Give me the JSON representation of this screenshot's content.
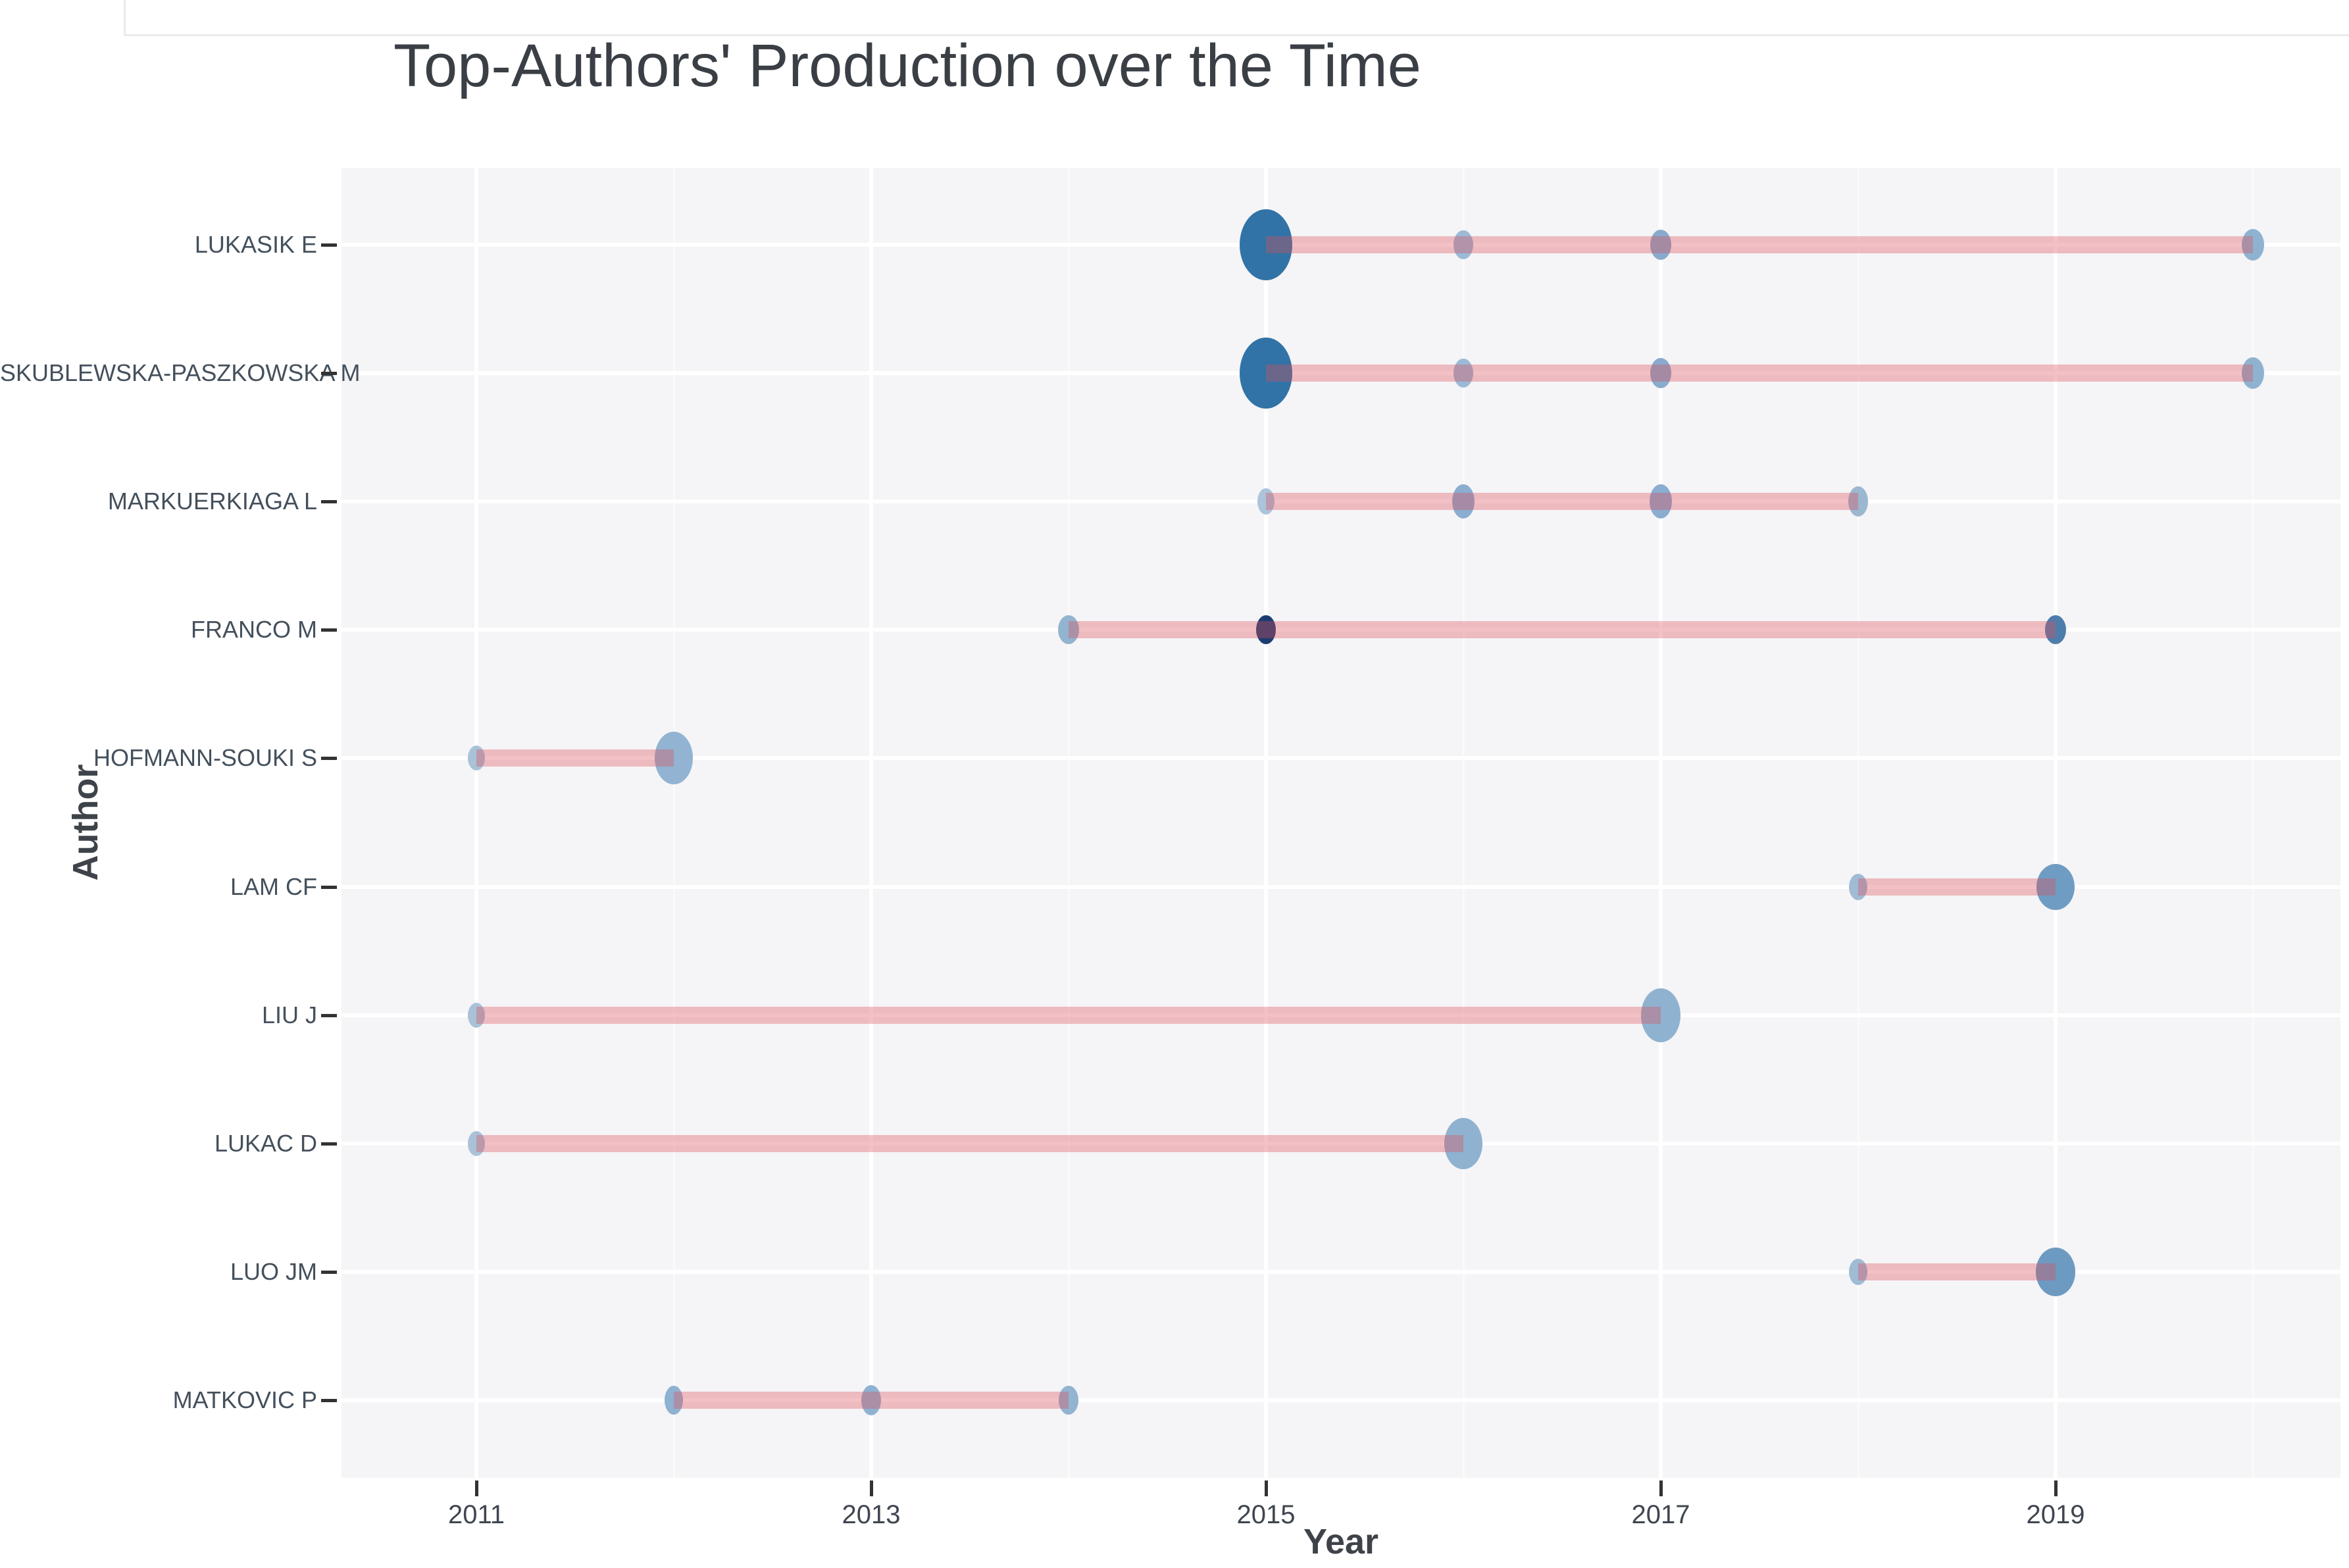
{
  "title": "Top-Authors' Production over the Time",
  "chart_data": {
    "type": "scatter",
    "title": "Top-Authors' Production over the Time",
    "xlabel": "Year",
    "ylabel": "Author",
    "x_ticks": [
      2011,
      2013,
      2015,
      2017,
      2019
    ],
    "x_minor_ticks": [
      2012,
      2014,
      2016,
      2018,
      2020
    ],
    "x_range": [
      2010.3,
      2020.45
    ],
    "grid": "white-on-gray-panel",
    "legend": "none",
    "marker_note": "dot size = articles count, dot darkness = citations intensity, pink line = activity span",
    "authors": [
      {
        "name": "LUKASIK E",
        "line_span": [
          2015,
          2020
        ],
        "points": [
          {
            "year": 2015,
            "w": 80,
            "h": 108,
            "color": "#3173a6"
          },
          {
            "year": 2016,
            "w": 30,
            "h": 44,
            "color": "#9cbad6"
          },
          {
            "year": 2017,
            "w": 32,
            "h": 46,
            "color": "#88abcd"
          },
          {
            "year": 2020,
            "w": 34,
            "h": 48,
            "color": "#8fb2d1"
          }
        ]
      },
      {
        "name": "SKUBLEWSKA-PASZKOWSKA M",
        "line_span": [
          2015,
          2020
        ],
        "points": [
          {
            "year": 2015,
            "w": 80,
            "h": 108,
            "color": "#3173a6"
          },
          {
            "year": 2016,
            "w": 30,
            "h": 44,
            "color": "#9cbad6"
          },
          {
            "year": 2017,
            "w": 32,
            "h": 46,
            "color": "#88abcd"
          },
          {
            "year": 2020,
            "w": 34,
            "h": 48,
            "color": "#8fb2d1"
          }
        ]
      },
      {
        "name": "MARKUERKIAGA L",
        "line_span": [
          2015,
          2018
        ],
        "points": [
          {
            "year": 2015,
            "w": 26,
            "h": 40,
            "color": "#abc4da"
          },
          {
            "year": 2016,
            "w": 34,
            "h": 52,
            "color": "#8badd0"
          },
          {
            "year": 2017,
            "w": 34,
            "h": 52,
            "color": "#8badd0"
          },
          {
            "year": 2018,
            "w": 30,
            "h": 46,
            "color": "#9cb7d0"
          }
        ]
      },
      {
        "name": "FRANCO M",
        "line_span": [
          2014,
          2019
        ],
        "points": [
          {
            "year": 2014,
            "w": 32,
            "h": 44,
            "color": "#92b4d0"
          },
          {
            "year": 2015,
            "w": 30,
            "h": 44,
            "color": "#1c3c70"
          },
          {
            "year": 2019,
            "w": 32,
            "h": 44,
            "color": "#4d7dab"
          }
        ]
      },
      {
        "name": "HOFMANN-SOUKI S",
        "line_span": [
          2011,
          2012
        ],
        "points": [
          {
            "year": 2011,
            "w": 26,
            "h": 38,
            "color": "#a9c2d8"
          },
          {
            "year": 2012,
            "w": 58,
            "h": 80,
            "color": "#92b4d2"
          }
        ]
      },
      {
        "name": "LAM CF",
        "line_span": [
          2018,
          2019
        ],
        "points": [
          {
            "year": 2018,
            "w": 28,
            "h": 40,
            "color": "#a0bbd4"
          },
          {
            "year": 2019,
            "w": 58,
            "h": 70,
            "color": "#6f9cc3"
          }
        ]
      },
      {
        "name": "LIU J",
        "line_span": [
          2011,
          2017
        ],
        "points": [
          {
            "year": 2011,
            "w": 26,
            "h": 38,
            "color": "#a9c2d8"
          },
          {
            "year": 2017,
            "w": 60,
            "h": 82,
            "color": "#8fb2d0"
          }
        ]
      },
      {
        "name": "LUKAC D",
        "line_span": [
          2011,
          2016
        ],
        "points": [
          {
            "year": 2011,
            "w": 26,
            "h": 38,
            "color": "#a9c2d8"
          },
          {
            "year": 2016,
            "w": 58,
            "h": 78,
            "color": "#8fb2d0"
          }
        ]
      },
      {
        "name": "LUO JM",
        "line_span": [
          2018,
          2019
        ],
        "points": [
          {
            "year": 2018,
            "w": 28,
            "h": 40,
            "color": "#a0bbd4"
          },
          {
            "year": 2019,
            "w": 60,
            "h": 74,
            "color": "#6d9ac1"
          }
        ]
      },
      {
        "name": "MATKOVIC P",
        "line_span": [
          2012,
          2014
        ],
        "points": [
          {
            "year": 2012,
            "w": 28,
            "h": 44,
            "color": "#8fb2d1"
          },
          {
            "year": 2013,
            "w": 30,
            "h": 46,
            "color": "#8fb2d1"
          },
          {
            "year": 2014,
            "w": 30,
            "h": 44,
            "color": "#92b4d0"
          }
        ]
      }
    ],
    "colors": {
      "panel_background": "#f5f4f6",
      "gridline": "#ffffff",
      "activity_line": "rgba(222,76,90,0.35)",
      "high_intensity_dot": "#1c3c70",
      "medium_intensity_dot": "#3173a6",
      "low_intensity_dot": "#a9c2d8",
      "tick": "#333333",
      "text": "#3f4650"
    }
  }
}
